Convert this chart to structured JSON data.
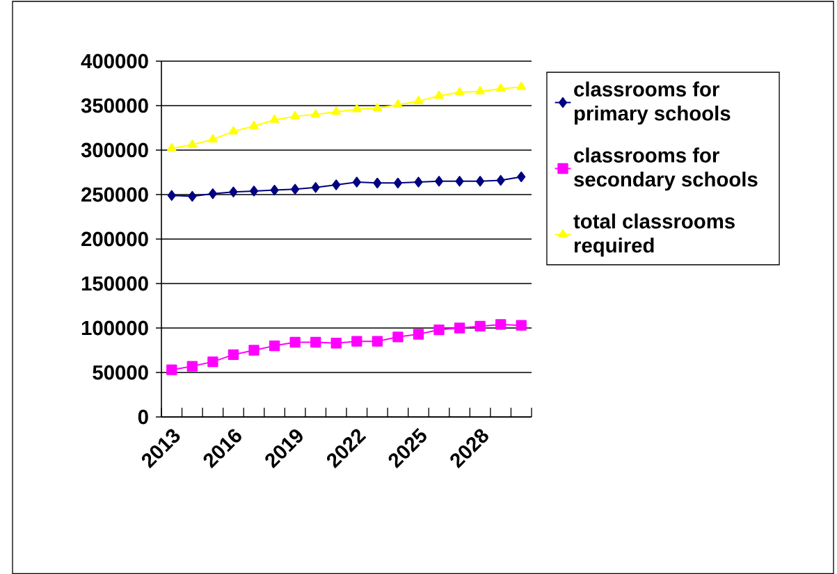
{
  "chart_data": {
    "type": "line",
    "categories": [
      "2013",
      null,
      null,
      "2016",
      null,
      null,
      "2019",
      null,
      null,
      "2022",
      null,
      null,
      "2025",
      null,
      null,
      "2028",
      null,
      null
    ],
    "series": [
      {
        "name": "classrooms for primary schools",
        "color": "#000080",
        "marker": "diamond",
        "values": [
          249000,
          248000,
          251000,
          253000,
          254000,
          255000,
          256000,
          258000,
          261000,
          264000,
          263000,
          263000,
          264000,
          265000,
          265000,
          265000,
          266000,
          270000
        ]
      },
      {
        "name": "classrooms for secondary schools",
        "color": "#ff00ff",
        "marker": "square",
        "values": [
          53000,
          57000,
          62000,
          70000,
          75000,
          80000,
          84000,
          84000,
          83000,
          85000,
          85000,
          90000,
          93000,
          98000,
          100000,
          102000,
          104000,
          103000
        ]
      },
      {
        "name": "total classrooms required",
        "color": "#ffff00",
        "marker": "triangle",
        "values": [
          302000,
          306000,
          312000,
          321000,
          327000,
          334000,
          338000,
          340000,
          343000,
          346000,
          347000,
          351000,
          355000,
          361000,
          365000,
          366000,
          369000,
          371000
        ]
      }
    ],
    "ylim": [
      0,
      400000
    ],
    "yticks": [
      0,
      50000,
      100000,
      150000,
      200000,
      250000,
      300000,
      350000,
      400000
    ],
    "grid": "y",
    "legend": "right"
  }
}
